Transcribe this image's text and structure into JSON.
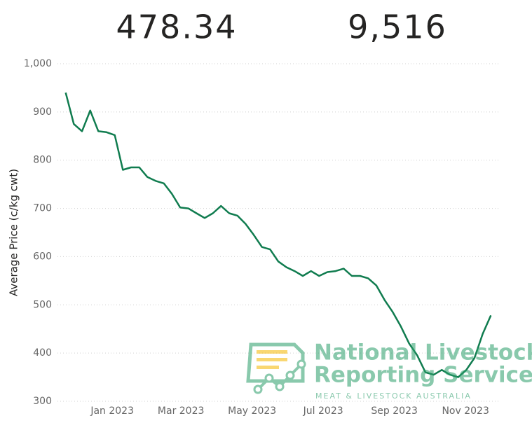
{
  "kpis": [
    "478.34",
    "9,516"
  ],
  "logo": {
    "line1": "National Livestock",
    "line2": "Reporting Service",
    "subtitle": "MEAT & LIVESTOCK AUSTRALIA"
  },
  "chart_data": {
    "type": "line",
    "y_label": "Average Price (c/kg cwt)",
    "ylim": [
      300,
      1000
    ],
    "yticks": [
      300,
      400,
      500,
      600,
      700,
      800,
      900,
      {
        "value": 1000,
        "label": "1,000"
      }
    ],
    "xlim": [
      -1,
      53
    ],
    "xticks": [
      {
        "value": 5.7,
        "label": "Jan 2023"
      },
      {
        "value": 14.1,
        "label": "Mar 2023"
      },
      {
        "value": 22.8,
        "label": "May 2023"
      },
      {
        "value": 31.5,
        "label": "Jul 2023"
      },
      {
        "value": 40.2,
        "label": "Sep 2023"
      },
      {
        "value": 48.9,
        "label": "Nov 2023"
      }
    ],
    "grid": true,
    "series": [
      {
        "name": "Average Price",
        "color": "#107c4f",
        "values": [
          940,
          875,
          860,
          903,
          860,
          858,
          852,
          780,
          785,
          785,
          765,
          757,
          752,
          730,
          702,
          700,
          690,
          680,
          690,
          705,
          690,
          685,
          668,
          645,
          620,
          615,
          590,
          578,
          570,
          560,
          570,
          560,
          568,
          570,
          575,
          560,
          560,
          555,
          540,
          510,
          485,
          455,
          420,
          395,
          360,
          355,
          365,
          355,
          350,
          365,
          390,
          440,
          478
        ]
      }
    ]
  }
}
